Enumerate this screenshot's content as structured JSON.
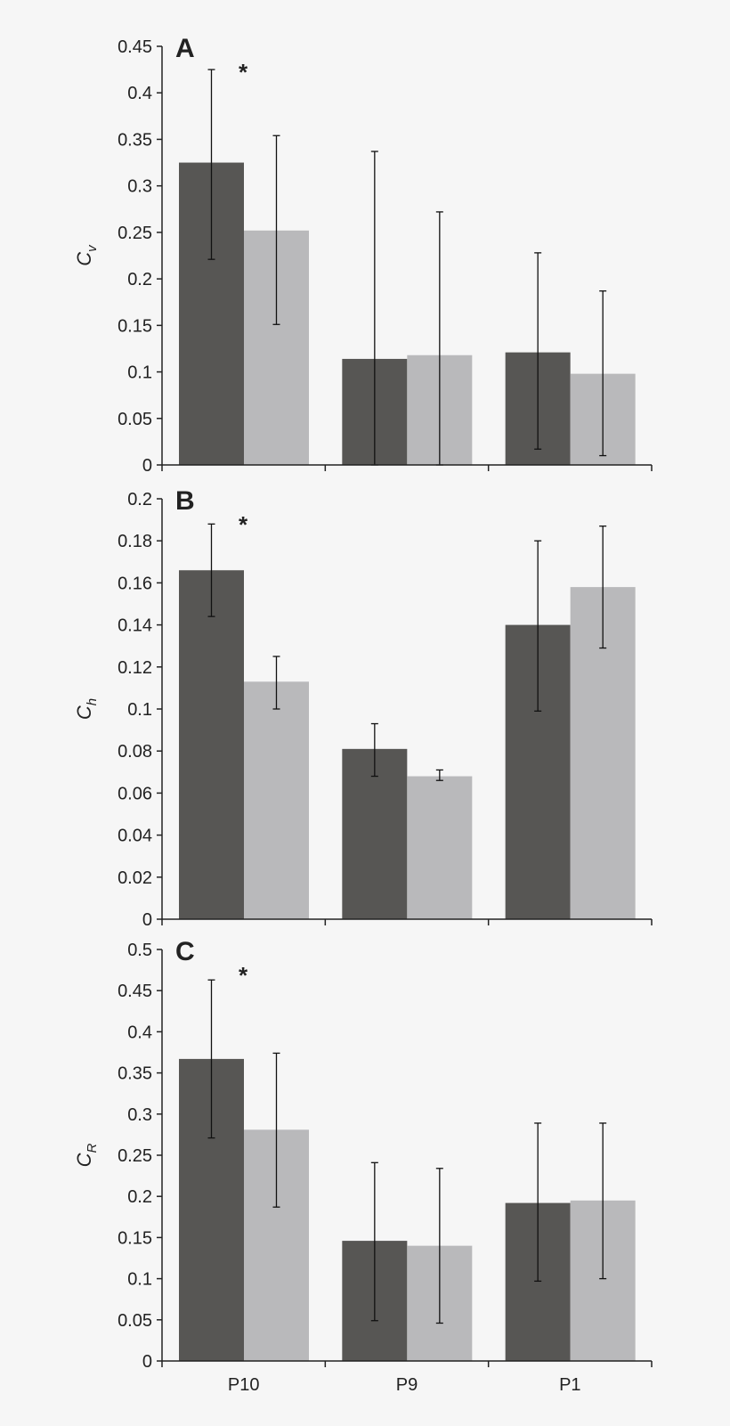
{
  "chart_data": [
    {
      "type": "bar",
      "panel": "A",
      "ylabel": "C",
      "ylabel_sub": "v",
      "categories": [
        "P10",
        "P9",
        "P1"
      ],
      "ylim": [
        0,
        0.45
      ],
      "yticks": [
        0,
        0.05,
        0.1,
        0.15,
        0.2,
        0.25,
        0.3,
        0.35,
        0.4,
        0.45
      ],
      "ytick_labels": [
        "0",
        "0.05",
        "0.1",
        "0.15",
        "0.2",
        "0.25",
        "0.3",
        "0.35",
        "0.4",
        "0.45"
      ],
      "series": [
        {
          "color": "#575654",
          "values": [
            0.325,
            0.114,
            0.121
          ],
          "error_low": [
            0.221,
            0.0,
            0.017
          ],
          "error_high": [
            0.425,
            0.337,
            0.228
          ]
        },
        {
          "color": "#b9b9bb",
          "values": [
            0.252,
            0.118,
            0.098
          ],
          "error_low": [
            0.151,
            0.0,
            0.01
          ],
          "error_high": [
            0.354,
            0.272,
            0.187
          ]
        }
      ],
      "annotations": [
        {
          "text": "*",
          "category": "P10"
        }
      ],
      "show_xlabels": false
    },
    {
      "type": "bar",
      "panel": "B",
      "ylabel": "C",
      "ylabel_sub": "h",
      "categories": [
        "P10",
        "P9",
        "P1"
      ],
      "ylim": [
        0,
        0.2
      ],
      "yticks": [
        0,
        0.02,
        0.04,
        0.06,
        0.08,
        0.1,
        0.12,
        0.14,
        0.16,
        0.18,
        0.2
      ],
      "ytick_labels": [
        "0",
        "0.02",
        "0.04",
        "0.06",
        "0.08",
        "0.1",
        "0.12",
        "0.14",
        "0.16",
        "0.18",
        "0.2"
      ],
      "series": [
        {
          "color": "#575654",
          "values": [
            0.166,
            0.081,
            0.14
          ],
          "error_low": [
            0.144,
            0.068,
            0.099
          ],
          "error_high": [
            0.188,
            0.093,
            0.18
          ]
        },
        {
          "color": "#b9b9bb",
          "values": [
            0.113,
            0.068,
            0.158
          ],
          "error_low": [
            0.1,
            0.066,
            0.129
          ],
          "error_high": [
            0.125,
            0.071,
            0.187
          ]
        }
      ],
      "annotations": [
        {
          "text": "*",
          "category": "P10"
        }
      ],
      "show_xlabels": false
    },
    {
      "type": "bar",
      "panel": "C",
      "ylabel": "C",
      "ylabel_sub": "R",
      "categories": [
        "P10",
        "P9",
        "P1"
      ],
      "ylim": [
        0,
        0.5
      ],
      "yticks": [
        0,
        0.05,
        0.1,
        0.15,
        0.2,
        0.25,
        0.3,
        0.35,
        0.4,
        0.45,
        0.5
      ],
      "ytick_labels": [
        "0",
        "0.05",
        "0.1",
        "0.15",
        "0.2",
        "0.25",
        "0.3",
        "0.35",
        "0.4",
        "0.45",
        "0.5"
      ],
      "series": [
        {
          "color": "#575654",
          "values": [
            0.367,
            0.146,
            0.192
          ],
          "error_low": [
            0.271,
            0.049,
            0.097
          ],
          "error_high": [
            0.463,
            0.241,
            0.289
          ]
        },
        {
          "color": "#b9b9bb",
          "values": [
            0.281,
            0.14,
            0.195
          ],
          "error_low": [
            0.187,
            0.046,
            0.1
          ],
          "error_high": [
            0.374,
            0.234,
            0.289
          ]
        }
      ],
      "annotations": [
        {
          "text": "*",
          "category": "P10"
        }
      ],
      "show_xlabels": true
    }
  ]
}
